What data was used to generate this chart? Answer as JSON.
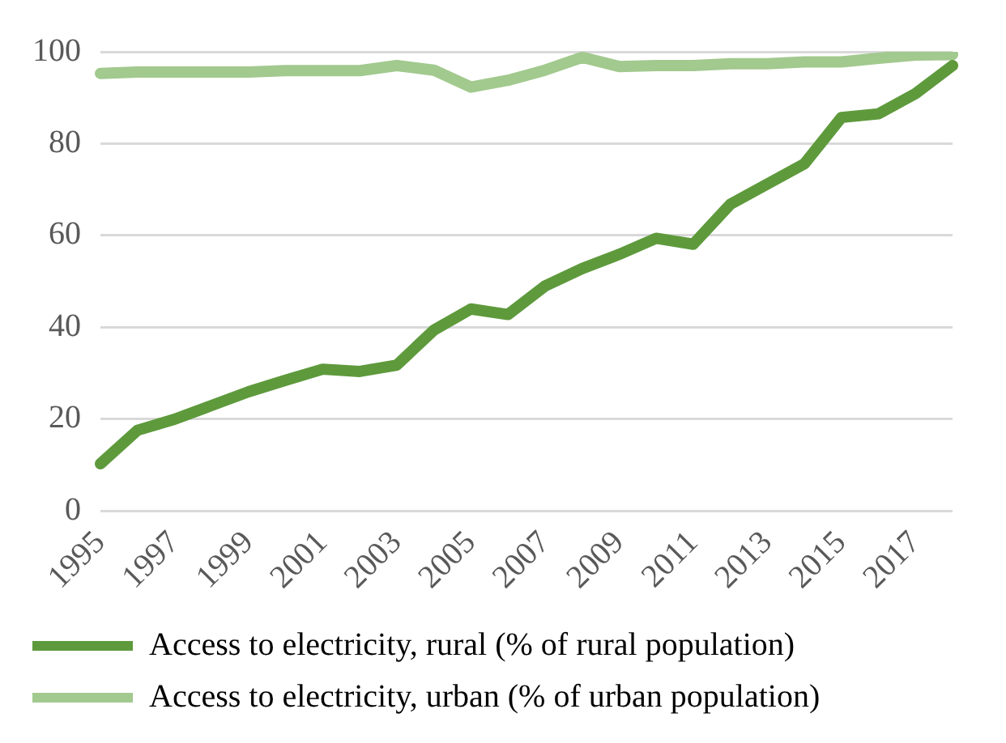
{
  "chart_data": {
    "type": "line",
    "categories": [
      "1995",
      null,
      "1997",
      null,
      "1999",
      null,
      "2001",
      null,
      "2003",
      null,
      "2005",
      null,
      "2007",
      null,
      "2009",
      null,
      "2011",
      null,
      "2013",
      null,
      "2015",
      null,
      "2017",
      null
    ],
    "series": [
      {
        "name": "Access to electricity, rural (% of rural population)",
        "color": "#5e9a3c",
        "values": [
          10.3,
          17.6,
          20,
          23,
          26,
          28.5,
          30.9,
          30.4,
          31.8,
          39.4,
          44,
          42.8,
          49,
          52.8,
          55.9,
          59.4,
          58.1,
          66.8,
          71.2,
          75.6,
          85.7,
          86.5,
          90.9,
          97
        ]
      },
      {
        "name": "Access to electricity, urban (% of urban population)",
        "color": "#a2c98e",
        "values": [
          95.3,
          95.6,
          95.6,
          95.6,
          95.6,
          95.9,
          95.9,
          95.9,
          97,
          96,
          92.3,
          93.8,
          96,
          98.8,
          96.8,
          97,
          97,
          97.4,
          97.4,
          97.8,
          97.8,
          98.6,
          99.3,
          99.4
        ]
      }
    ],
    "ylim": [
      0,
      100
    ],
    "yticks": [
      0,
      20,
      40,
      60,
      80,
      100
    ],
    "grid": "y",
    "legend": "bottom",
    "marker": "none",
    "line_style": "solid"
  }
}
